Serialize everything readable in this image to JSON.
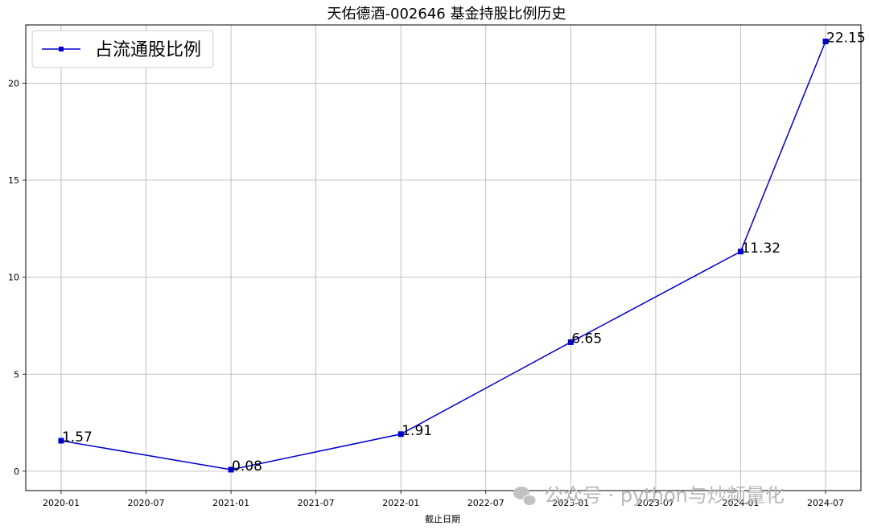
{
  "chart_data": {
    "type": "line",
    "title": "天佑德酒-002646 基金持股比例历史",
    "xlabel": "截止日期",
    "ylabel": "",
    "x": [
      "2020-01",
      "2021-01",
      "2022-01",
      "2023-01",
      "2024-01",
      "2024-07"
    ],
    "x_ticks": [
      "2020-01",
      "2020-07",
      "2021-01",
      "2021-07",
      "2022-01",
      "2022-07",
      "2023-01",
      "2023-07",
      "2024-01",
      "2024-07"
    ],
    "y_ticks": [
      "0",
      "5",
      "10",
      "15",
      "20"
    ],
    "ylim": [
      -1,
      23
    ],
    "grid": true,
    "legend_position": "top-left",
    "series": [
      {
        "name": "占流通股比例",
        "color": "#0000cc",
        "marker": "square",
        "values": [
          1.57,
          0.08,
          1.91,
          6.65,
          11.32,
          22.15
        ],
        "labels": [
          "1.57",
          "0.08",
          "1.91",
          "6.65",
          "11.32",
          "22.15"
        ]
      }
    ]
  },
  "watermark": {
    "icon": "wechat-icon",
    "text": "公众号 · python与炒频量化"
  }
}
